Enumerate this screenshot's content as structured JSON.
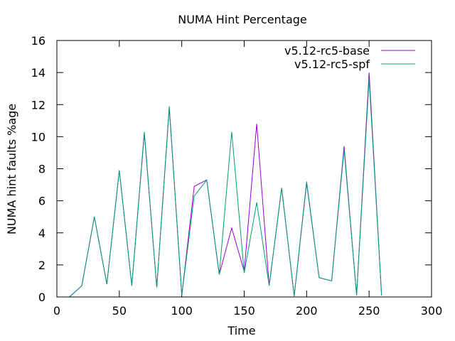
{
  "chart_data": {
    "type": "line",
    "title": "NUMA Hint Percentage",
    "xlabel": "Time",
    "ylabel": "NUMA hint faults %age",
    "xlim": [
      0,
      300
    ],
    "ylim": [
      0,
      16
    ],
    "xticks": [
      0,
      50,
      100,
      150,
      200,
      250,
      300
    ],
    "yticks": [
      0,
      2,
      4,
      6,
      8,
      10,
      12,
      14,
      16
    ],
    "grid": false,
    "legend_position": "top-right",
    "series": [
      {
        "name": "v5.12-rc5-base",
        "color": "#9400d3",
        "x": [
          10,
          20,
          30,
          40,
          50,
          60,
          70,
          80,
          90,
          100,
          110,
          120,
          130,
          140,
          150,
          160,
          170,
          180,
          190,
          200,
          210,
          220,
          230,
          240,
          250,
          260
        ],
        "y": [
          0.0,
          0.7,
          5.0,
          0.8,
          7.9,
          0.7,
          10.2,
          0.6,
          11.8,
          0.1,
          6.9,
          7.3,
          1.4,
          4.3,
          1.6,
          10.8,
          0.7,
          6.8,
          0.05,
          7.1,
          1.2,
          1.0,
          9.4,
          0.1,
          14.0,
          0.1
        ]
      },
      {
        "name": "v5.12-rc5-spf",
        "color": "#009e73",
        "x": [
          10,
          20,
          30,
          40,
          50,
          60,
          70,
          80,
          90,
          100,
          110,
          120,
          130,
          140,
          150,
          160,
          170,
          180,
          190,
          200,
          210,
          220,
          230,
          240,
          250,
          260
        ],
        "y": [
          0.0,
          0.7,
          5.0,
          0.8,
          7.9,
          0.7,
          10.3,
          0.6,
          11.9,
          0.1,
          6.3,
          7.3,
          1.4,
          10.3,
          1.5,
          5.9,
          0.7,
          6.8,
          0.05,
          7.2,
          1.2,
          1.0,
          9.2,
          0.1,
          13.6,
          0.1
        ]
      }
    ]
  }
}
